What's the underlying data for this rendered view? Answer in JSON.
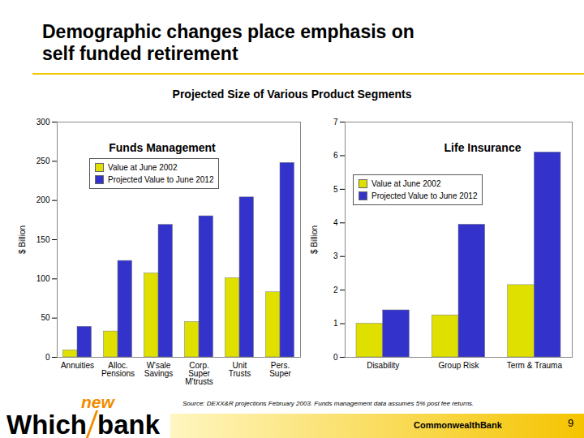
{
  "title": "Demographic changes place emphasis on\nself funded retirement",
  "subtitle": "Projected Size of Various Product Segments",
  "source": "Source: DEXX&R projections February 2003. Funds management data assumes 5% post fee returns.",
  "page": "9",
  "logo": {
    "which": "Which",
    "new": "new",
    "bank": "bank",
    "sponsor": "CommonwealthBank"
  },
  "chart_data": [
    {
      "type": "bar",
      "title": "Funds Management",
      "ylabel": "$ Billion",
      "categories": [
        "Annuities",
        "Alloc. Pensions",
        "W'sale Savings",
        "Corp. Super M'trusts",
        "Unit Trusts",
        "Pers. Super"
      ],
      "series": [
        {
          "name": "Value at June 2002",
          "color": "#e0e000",
          "values": [
            9,
            33,
            107,
            45,
            101,
            83
          ]
        },
        {
          "name": "Projected Value to June 2012",
          "color": "#3333cc",
          "values": [
            39,
            123,
            169,
            180,
            204,
            248
          ]
        }
      ],
      "ylim": [
        0,
        300
      ],
      "yticks": [
        0,
        50,
        100,
        150,
        200,
        250,
        300
      ],
      "grid": false,
      "legend": "top"
    },
    {
      "type": "bar",
      "title": "Life Insurance",
      "ylabel": "$ Billion",
      "categories": [
        "Disability",
        "Group Risk",
        "Term & Trauma"
      ],
      "series": [
        {
          "name": "Value at June 2002",
          "color": "#e0e000",
          "values": [
            1.0,
            1.25,
            2.15
          ]
        },
        {
          "name": "Projected Value to June 2012",
          "color": "#3333cc",
          "values": [
            1.4,
            3.95,
            6.1
          ]
        }
      ],
      "ylim": [
        0,
        7
      ],
      "yticks": [
        0,
        1,
        2,
        3,
        4,
        5,
        6,
        7
      ],
      "grid": false,
      "legend": "top"
    }
  ]
}
